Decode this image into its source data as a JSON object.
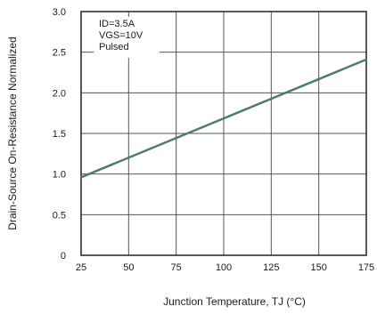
{
  "chart_data": {
    "type": "line",
    "xlabel": "Junction Temperature, TJ (°C)",
    "ylabel": "Drain-Source On-Resistance Normalized",
    "xlim": [
      25,
      175
    ],
    "ylim": [
      0,
      3.0
    ],
    "x_ticks": [
      25,
      50,
      75,
      100,
      125,
      150,
      175
    ],
    "x_tick_labels": [
      "25",
      "50",
      "75",
      "100",
      "125",
      "150",
      "175"
    ],
    "y_ticks": [
      0,
      0.5,
      1.0,
      1.5,
      2.0,
      2.5,
      3.0
    ],
    "y_tick_labels": [
      "0",
      "0.5",
      "1.0",
      "1.5",
      "2.0",
      "2.5",
      "3.0"
    ],
    "grid": true,
    "annotation_lines": [
      "ID=3.5A",
      "VGS=10V",
      "Pulsed"
    ],
    "annotation_placement": "top-left",
    "series": [
      {
        "color": "#4a7a74",
        "x": [
          25,
          175
        ],
        "y": [
          0.96,
          2.41
        ]
      }
    ]
  }
}
